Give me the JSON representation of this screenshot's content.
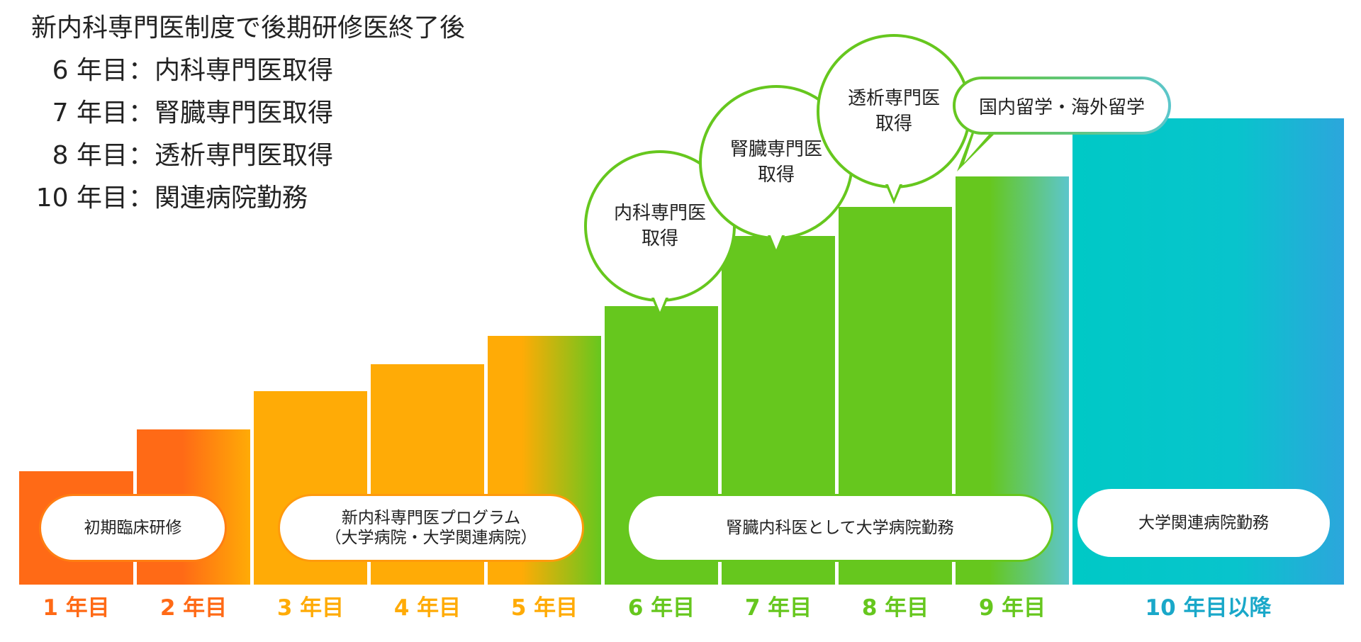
{
  "intro": {
    "heading": "新内科専門医制度で後期研修医終了後",
    "rows": [
      {
        "year": "6 年目",
        "colon": "：",
        "text": "内科専門医取得"
      },
      {
        "year": "7 年目",
        "colon": "：",
        "text": "腎臓専門医取得"
      },
      {
        "year": "8 年目",
        "colon": "：",
        "text": "透析専門医取得"
      },
      {
        "year": "10 年目",
        "colon": "：",
        "text": "関連病院勤務"
      }
    ]
  },
  "pills": [
    {
      "line1": "初期臨床研修",
      "line2": ""
    },
    {
      "line1": "新内科専門医プログラム",
      "line2": "（大学病院・大学関連病院）"
    },
    {
      "line1": "腎臓内科医として大学病院勤務",
      "line2": ""
    },
    {
      "line1": "大学関連病院勤務",
      "line2": ""
    }
  ],
  "bubbles": [
    {
      "line1": "内科専門医",
      "line2": "取得"
    },
    {
      "line1": "腎臓専門医",
      "line2": "取得"
    },
    {
      "line1": "透析専門医",
      "line2": "取得"
    },
    {
      "line1": "国内留学・海外留学",
      "line2": ""
    }
  ],
  "years": [
    {
      "label": "1 年目",
      "color": "#ff6a16"
    },
    {
      "label": "2 年目",
      "color": "#ff6a16"
    },
    {
      "label": "3 年目",
      "color": "#ffab06"
    },
    {
      "label": "4 年目",
      "color": "#ffab06"
    },
    {
      "label": "5 年目",
      "color": "#ffab06"
    },
    {
      "label": "6 年目",
      "color": "#66c71e"
    },
    {
      "label": "7 年目",
      "color": "#66c71e"
    },
    {
      "label": "8 年目",
      "color": "#66c71e"
    },
    {
      "label": "9 年目",
      "color": "#66c71e"
    },
    {
      "label": "10 年目以降",
      "color": "#1aa8c9"
    }
  ]
}
